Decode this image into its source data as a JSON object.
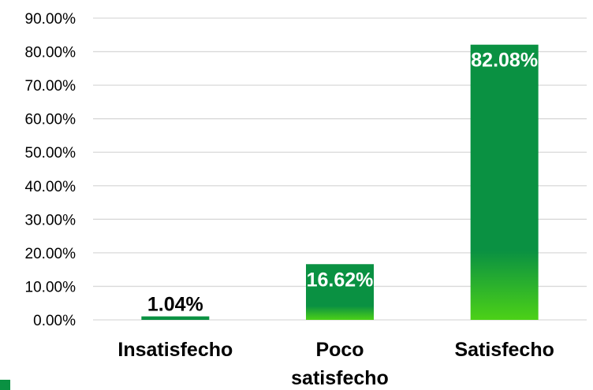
{
  "chart_data": {
    "type": "bar",
    "categories": [
      "Insatisfecho",
      "Poco satisfecho",
      "Satisfecho"
    ],
    "category_lines": [
      [
        "Insatisfecho"
      ],
      [
        "Poco",
        "satisfecho"
      ],
      [
        "Satisfecho"
      ]
    ],
    "values": [
      1.04,
      16.62,
      82.08
    ],
    "data_labels": [
      "1.04%",
      "16.62%",
      "82.08%"
    ],
    "y_ticks": [
      0,
      10,
      20,
      30,
      40,
      50,
      60,
      70,
      80,
      90
    ],
    "y_tick_labels": [
      "0.00%",
      "10.00%",
      "20.00%",
      "30.00%",
      "40.00%",
      "50.00%",
      "60.00%",
      "70.00%",
      "80.00%",
      "90.00%"
    ],
    "ylim": [
      0,
      90
    ],
    "grid": true,
    "title": "",
    "xlabel": "",
    "ylabel": ""
  },
  "colors": {
    "bar_top": "#0a9142",
    "bar_bottom": "#4cd117",
    "grid": "#d9d9d9",
    "legend_swatch": "#0a9142"
  }
}
